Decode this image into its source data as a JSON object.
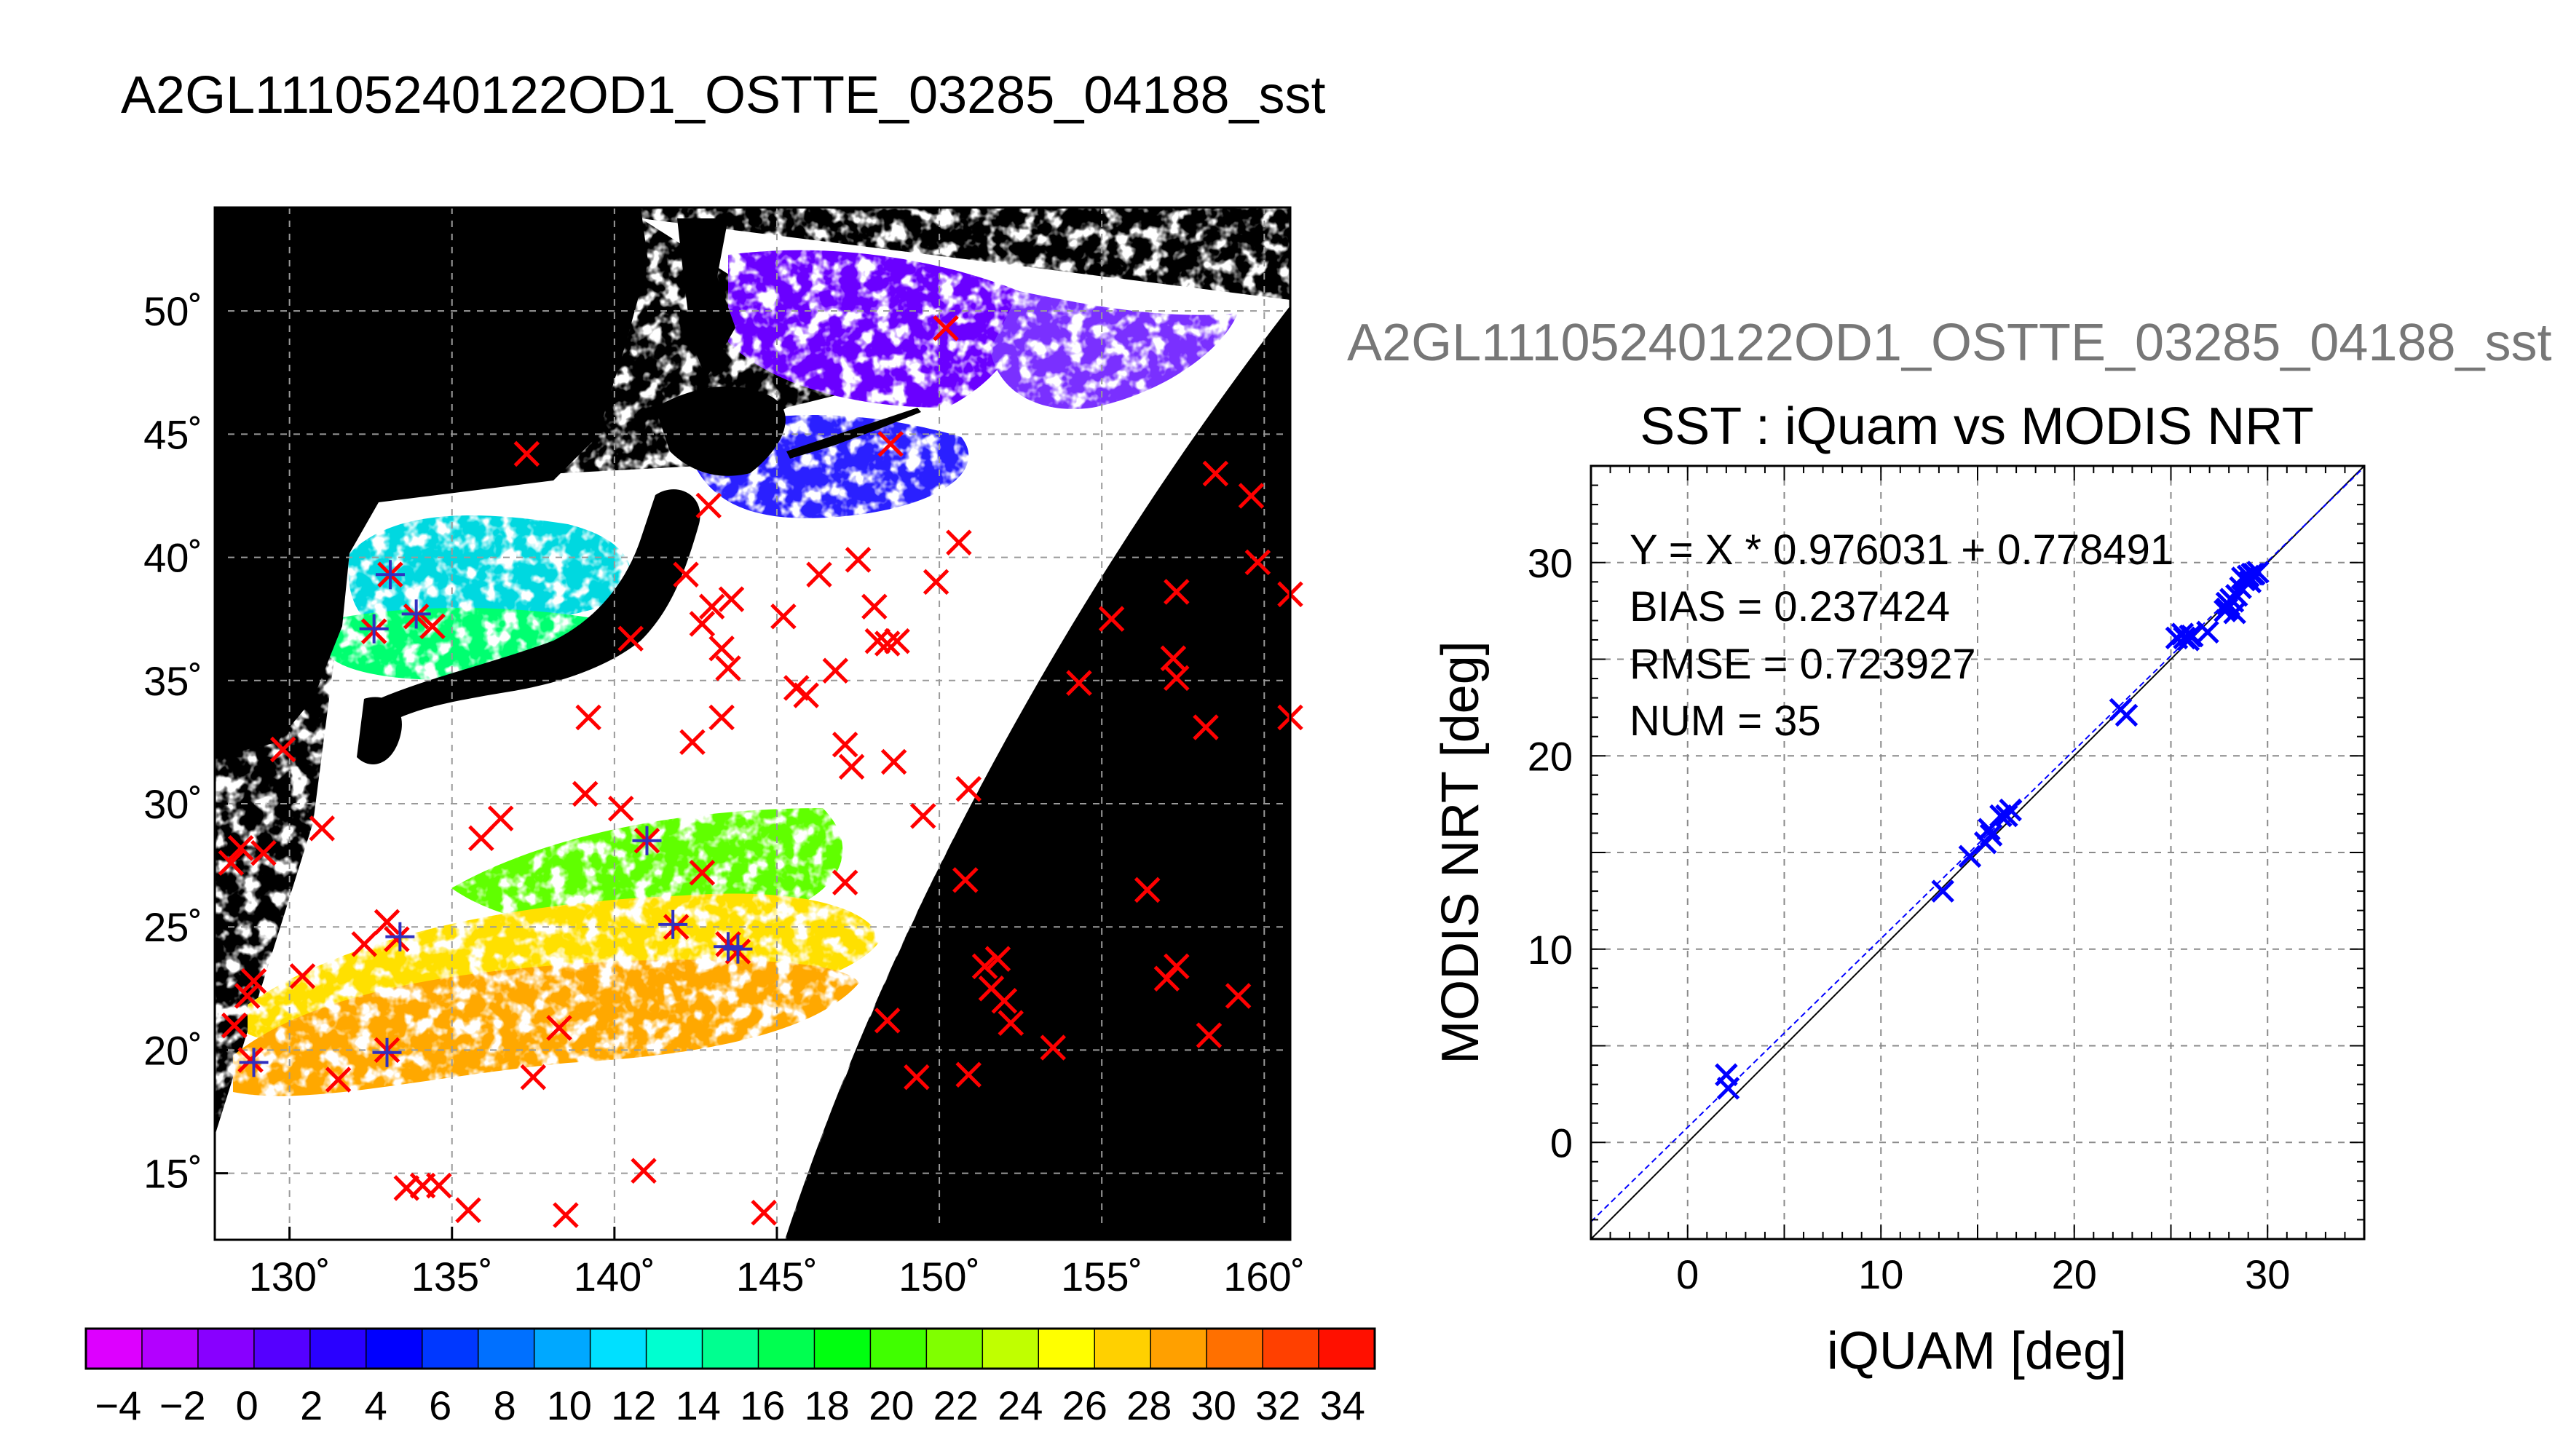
{
  "figure": {
    "title": "A2GL11105240122OD1_OSTTE_03285_04188_sst",
    "overlay_title": "A2GL11105240122OD1_OSTTE_03285_04188_sst"
  },
  "colors": {
    "match_marker": "#ff0000",
    "cloud_mask": "#ffffff",
    "land_space": "#000000",
    "scatter_marker": "#0000ff",
    "fit_line": "#0000ff",
    "identity_line": "#000000"
  },
  "chart_data": [
    {
      "type": "heatmap",
      "title": "A2GL11105240122OD1_OSTTE_03285_04188_sst",
      "x_ticks": [
        "130˚",
        "135˚",
        "140˚",
        "145˚",
        "150˚",
        "155˚",
        "160˚"
      ],
      "y_ticks": [
        "15˚",
        "20˚",
        "25˚",
        "30˚",
        "35˚",
        "40˚",
        "45˚",
        "50˚"
      ],
      "xlim": [
        127.7,
        160.8
      ],
      "ylim": [
        12.3,
        54.2
      ],
      "grid": true,
      "colorbar": {
        "ticks": [
          "−4",
          "−2",
          "0",
          "2",
          "4",
          "6",
          "8",
          "10",
          "12",
          "14",
          "16",
          "18",
          "20",
          "22",
          "24",
          "26",
          "28",
          "30",
          "32",
          "34"
        ],
        "range": [
          -5,
          35
        ],
        "colors": [
          "#dd00ff",
          "#b300ff",
          "#8800ff",
          "#5500ff",
          "#2a00ff",
          "#0000ff",
          "#0038ff",
          "#0070ff",
          "#00a8ff",
          "#00e0ff",
          "#00ffd0",
          "#00ff90",
          "#00ff50",
          "#00ff10",
          "#40ff00",
          "#80ff00",
          "#c0ff00",
          "#ffff00",
          "#ffd000",
          "#ffa000",
          "#ff7000",
          "#ff4000",
          "#ff1000"
        ]
      },
      "matchups": [
        [
          128.2,
          27.6
        ],
        [
          128.5,
          28.2
        ],
        [
          128.9,
          22.8
        ],
        [
          128.7,
          22.2
        ],
        [
          129.2,
          28.0
        ],
        [
          128.3,
          21.0
        ],
        [
          128.8,
          19.6
        ],
        [
          129.8,
          32.2
        ],
        [
          130.4,
          23.0
        ],
        [
          131.0,
          29.0
        ],
        [
          131.5,
          18.8
        ],
        [
          132.3,
          24.3
        ],
        [
          133.0,
          20.0
        ],
        [
          133.0,
          25.2
        ],
        [
          133.3,
          24.5
        ],
        [
          133.1,
          39.3
        ],
        [
          132.6,
          37.0
        ],
        [
          133.9,
          37.6
        ],
        [
          134.4,
          37.2
        ],
        [
          133.6,
          14.4
        ],
        [
          134.1,
          14.5
        ],
        [
          134.6,
          14.5
        ],
        [
          135.5,
          13.5
        ],
        [
          135.9,
          28.6
        ],
        [
          136.5,
          29.4
        ],
        [
          137.3,
          44.2
        ],
        [
          137.5,
          18.9
        ],
        [
          138.3,
          20.9
        ],
        [
          138.5,
          13.3
        ],
        [
          139.1,
          30.4
        ],
        [
          139.2,
          33.5
        ],
        [
          140.2,
          29.8
        ],
        [
          140.5,
          36.7
        ],
        [
          140.9,
          15.1
        ],
        [
          141.0,
          28.5
        ],
        [
          141.9,
          25.0
        ],
        [
          142.2,
          39.3
        ],
        [
          142.7,
          37.3
        ],
        [
          142.4,
          32.5
        ],
        [
          142.7,
          27.2
        ],
        [
          142.9,
          42.1
        ],
        [
          143.0,
          38.0
        ],
        [
          143.5,
          24.3
        ],
        [
          143.8,
          24.0
        ],
        [
          143.5,
          35.5
        ],
        [
          143.3,
          33.5
        ],
        [
          143.6,
          38.3
        ],
        [
          143.3,
          36.3
        ],
        [
          144.6,
          13.4
        ],
        [
          145.2,
          37.6
        ],
        [
          145.6,
          34.7
        ],
        [
          145.9,
          34.4
        ],
        [
          146.3,
          39.3
        ],
        [
          146.8,
          35.4
        ],
        [
          147.1,
          32.4
        ],
        [
          147.3,
          31.5
        ],
        [
          147.1,
          26.8
        ],
        [
          147.5,
          39.9
        ],
        [
          148.0,
          38.0
        ],
        [
          148.1,
          36.6
        ],
        [
          148.4,
          36.5
        ],
        [
          148.7,
          36.6
        ],
        [
          148.6,
          31.7
        ],
        [
          148.4,
          21.2
        ],
        [
          148.5,
          44.6
        ],
        [
          149.3,
          18.9
        ],
        [
          149.5,
          29.5
        ],
        [
          149.9,
          39.0
        ],
        [
          150.2,
          49.3
        ],
        [
          150.6,
          40.6
        ],
        [
          150.8,
          26.9
        ],
        [
          150.9,
          30.6
        ],
        [
          150.9,
          19.0
        ],
        [
          151.4,
          23.4
        ],
        [
          151.6,
          22.5
        ],
        [
          151.8,
          23.7
        ],
        [
          152.0,
          22.0
        ],
        [
          152.2,
          21.1
        ],
        [
          153.5,
          20.1
        ],
        [
          154.3,
          34.9
        ],
        [
          155.3,
          37.5
        ],
        [
          156.4,
          26.5
        ],
        [
          157.0,
          22.9
        ],
        [
          157.3,
          23.4
        ],
        [
          157.2,
          35.9
        ],
        [
          157.3,
          38.6
        ],
        [
          157.3,
          35.1
        ],
        [
          158.2,
          33.1
        ],
        [
          158.3,
          20.6
        ],
        [
          158.5,
          43.4
        ],
        [
          159.2,
          22.2
        ],
        [
          159.6,
          42.5
        ],
        [
          159.8,
          39.8
        ],
        [
          160.8,
          33.5
        ],
        [
          160.8,
          38.5
        ]
      ],
      "iquam_points": [
        [
          128.9,
          19.5
        ],
        [
          133.0,
          19.9
        ],
        [
          132.6,
          37.1
        ],
        [
          133.1,
          39.3
        ],
        [
          133.9,
          37.7
        ],
        [
          133.4,
          24.6
        ],
        [
          141.0,
          28.5
        ],
        [
          141.8,
          25.1
        ],
        [
          143.5,
          24.2
        ],
        [
          143.8,
          24.1
        ]
      ]
    },
    {
      "type": "scatter",
      "title": "SST : iQuam vs MODIS NRT",
      "xlabel": "iQUAM [deg]",
      "ylabel": "MODIS NRT [deg]",
      "xlim": [
        -5,
        35
      ],
      "ylim": [
        -5,
        35
      ],
      "x_ticks": [
        "0",
        "10",
        "20",
        "30"
      ],
      "y_ticks": [
        "0",
        "10",
        "20",
        "30"
      ],
      "grid": true,
      "annotations": [
        "Y = X * 0.976031 + 0.778491",
        "BIAS = 0.237424",
        "RMSE = 0.723927",
        "NUM = 35"
      ],
      "fit": {
        "slope": 0.976031,
        "intercept": 0.778491
      },
      "x": [
        2.0,
        2.1,
        13.2,
        14.6,
        15.4,
        15.6,
        16.5,
        16.7,
        22.4,
        22.7,
        25.3,
        25.6,
        25.9,
        26.1,
        26.9,
        27.8,
        27.9,
        28.1,
        28.3,
        28.4,
        28.6,
        28.8,
        29.0,
        29.1,
        29.3,
        29.5,
        28.0,
        27.9,
        25.7,
        16.2,
        28.7,
        29.2,
        26.0,
        28.2,
        15.7
      ],
      "y": [
        3.5,
        2.8,
        13.0,
        14.8,
        15.5,
        16.2,
        16.9,
        17.2,
        22.4,
        22.1,
        26.1,
        26.3,
        26.0,
        26.2,
        26.4,
        27.5,
        27.9,
        28.1,
        27.4,
        28.3,
        28.7,
        29.1,
        29.3,
        29.0,
        29.4,
        29.5,
        27.8,
        27.6,
        26.1,
        16.9,
        29.2,
        29.4,
        26.2,
        28.0,
        15.9
      ]
    }
  ]
}
